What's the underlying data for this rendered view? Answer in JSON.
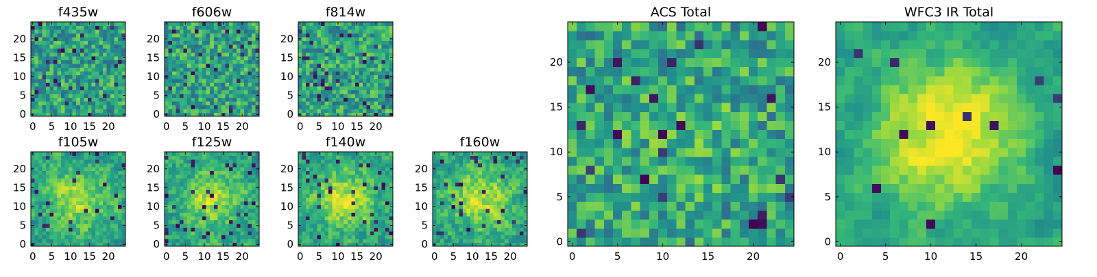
{
  "figure": {
    "colormap": [
      "#440154",
      "#31688e",
      "#21918c",
      "#35b779",
      "#90d743",
      "#fde725"
    ]
  },
  "chart_data": [
    {
      "type": "heatmap",
      "title": "f435w",
      "grid_size": [
        25,
        25
      ],
      "xlim": [
        0,
        25
      ],
      "ylim": [
        0,
        25
      ],
      "xticks": [
        0,
        5,
        10,
        15,
        20
      ],
      "yticks": [
        0,
        5,
        10,
        15,
        20
      ],
      "xtick_labels": [
        "0",
        "5",
        "10",
        "15",
        "20"
      ],
      "ytick_labels": [
        "0",
        "5",
        "10",
        "15",
        "20"
      ],
      "seed": 11,
      "smoothing": 0,
      "center_peak": 0.0,
      "outlier_rate": 0.05
    },
    {
      "type": "heatmap",
      "title": "f606w",
      "grid_size": [
        25,
        25
      ],
      "xlim": [
        0,
        25
      ],
      "ylim": [
        0,
        25
      ],
      "xticks": [
        0,
        5,
        10,
        15,
        20
      ],
      "yticks": [
        0,
        5,
        10,
        15,
        20
      ],
      "xtick_labels": [
        "0",
        "5",
        "10",
        "15",
        "20"
      ],
      "ytick_labels": [
        "0",
        "5",
        "10",
        "15",
        "20"
      ],
      "seed": 23,
      "smoothing": 0,
      "center_peak": 0.0,
      "outlier_rate": 0.05
    },
    {
      "type": "heatmap",
      "title": "f814w",
      "grid_size": [
        25,
        25
      ],
      "xlim": [
        0,
        25
      ],
      "ylim": [
        0,
        25
      ],
      "xticks": [
        0,
        5,
        10,
        15,
        20
      ],
      "yticks": [
        0,
        5,
        10,
        15,
        20
      ],
      "xtick_labels": [
        "0",
        "5",
        "10",
        "15",
        "20"
      ],
      "ytick_labels": [
        "0",
        "5",
        "10",
        "15",
        "20"
      ],
      "seed": 37,
      "smoothing": 0,
      "center_peak": 0.0,
      "outlier_rate": 0.06
    },
    {
      "type": "heatmap",
      "title": "f105w",
      "grid_size": [
        25,
        25
      ],
      "xlim": [
        0,
        25
      ],
      "ylim": [
        0,
        25
      ],
      "xticks": [
        0,
        5,
        10,
        15,
        20
      ],
      "yticks": [
        0,
        5,
        10,
        15,
        20
      ],
      "xtick_labels": [
        "0",
        "5",
        "10",
        "15",
        "20"
      ],
      "ytick_labels": [
        "0",
        "5",
        "10",
        "15",
        "20"
      ],
      "seed": 41,
      "smoothing": 1,
      "center_peak": 0.35,
      "outlier_rate": 0.05
    },
    {
      "type": "heatmap",
      "title": "f125w",
      "grid_size": [
        25,
        25
      ],
      "xlim": [
        0,
        25
      ],
      "ylim": [
        0,
        25
      ],
      "xticks": [
        0,
        5,
        10,
        15,
        20
      ],
      "yticks": [
        0,
        5,
        10,
        15,
        20
      ],
      "xtick_labels": [
        "0",
        "5",
        "10",
        "15",
        "20"
      ],
      "ytick_labels": [
        "0",
        "5",
        "10",
        "15",
        "20"
      ],
      "seed": 53,
      "smoothing": 1,
      "center_peak": 0.35,
      "outlier_rate": 0.05
    },
    {
      "type": "heatmap",
      "title": "f140w",
      "grid_size": [
        25,
        25
      ],
      "xlim": [
        0,
        25
      ],
      "ylim": [
        0,
        25
      ],
      "xticks": [
        0,
        5,
        10,
        15,
        20
      ],
      "yticks": [
        0,
        5,
        10,
        15,
        20
      ],
      "xtick_labels": [
        "0",
        "5",
        "10",
        "15",
        "20"
      ],
      "ytick_labels": [
        "0",
        "5",
        "10",
        "15",
        "20"
      ],
      "seed": 67,
      "smoothing": 1,
      "center_peak": 0.4,
      "outlier_rate": 0.05
    },
    {
      "type": "heatmap",
      "title": "f160w",
      "grid_size": [
        25,
        25
      ],
      "xlim": [
        0,
        25
      ],
      "ylim": [
        0,
        25
      ],
      "xticks": [
        0,
        5,
        10,
        15,
        20
      ],
      "yticks": [
        0,
        5,
        10,
        15,
        20
      ],
      "xtick_labels": [
        "0",
        "5",
        "10",
        "15",
        "20"
      ],
      "ytick_labels": [
        "0",
        "5",
        "10",
        "15",
        "20"
      ],
      "seed": 79,
      "smoothing": 1,
      "center_peak": 0.4,
      "outlier_rate": 0.05
    },
    {
      "type": "heatmap",
      "title": "ACS Total",
      "grid_size": [
        25,
        25
      ],
      "xlim": [
        0,
        25
      ],
      "ylim": [
        0,
        25
      ],
      "xticks": [
        0,
        5,
        10,
        15,
        20
      ],
      "yticks": [
        0,
        5,
        10,
        15,
        20
      ],
      "xtick_labels": [
        "0",
        "5",
        "10",
        "15",
        "20"
      ],
      "ytick_labels": [
        "0",
        "5",
        "10",
        "15",
        "20"
      ],
      "seed": 97,
      "smoothing": 0,
      "center_peak": 0.1,
      "outlier_rate": 0.04
    },
    {
      "type": "heatmap",
      "title": "WFC3 IR Total",
      "grid_size": [
        25,
        25
      ],
      "xlim": [
        0,
        25
      ],
      "ylim": [
        0,
        25
      ],
      "xticks": [
        0,
        5,
        10,
        15,
        20
      ],
      "yticks": [
        0,
        5,
        10,
        15,
        20
      ],
      "xtick_labels": [
        "0",
        "5",
        "10",
        "15",
        "20"
      ],
      "ytick_labels": [
        "0",
        "5",
        "10",
        "15",
        "20"
      ],
      "seed": 113,
      "smoothing": 2,
      "center_peak": 0.55,
      "outlier_rate": 0.025
    }
  ]
}
